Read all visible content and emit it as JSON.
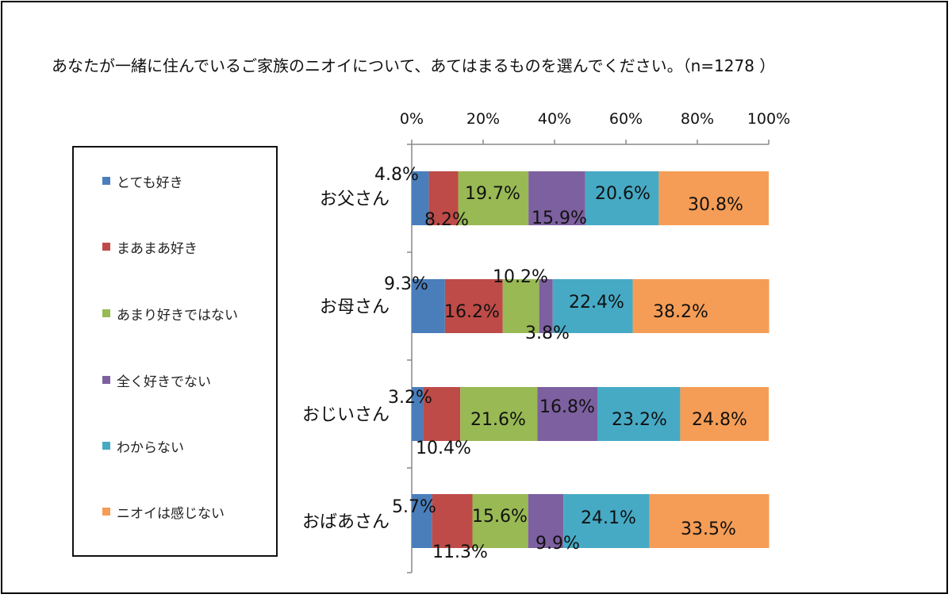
{
  "title": "あなたが一緒に住んでいるご家族のニオイについて、あてはまるものを選んでください。（n=1278 ）",
  "legend": {
    "items": [
      {
        "label": "とても好き",
        "color": "#4A7EBB"
      },
      {
        "label": "まあまあ好き",
        "color": "#BE4B48"
      },
      {
        "label": "あまり好きではない",
        "color": "#98B954"
      },
      {
        "label": "全く好きでない",
        "color": "#7D60A0"
      },
      {
        "label": "わからない",
        "color": "#46AAC5"
      },
      {
        "label": "ニオイは感じない",
        "color": "#F59D56"
      }
    ]
  },
  "chart_data": {
    "type": "bar",
    "orientation": "horizontal",
    "stacked": true,
    "percent": true,
    "xlim": [
      0,
      100
    ],
    "x_ticks": [
      "0%",
      "20%",
      "40%",
      "60%",
      "80%",
      "100%"
    ],
    "categories": [
      "お父さん",
      "お母さん",
      "おじいさん",
      "おばあさん"
    ],
    "series": [
      {
        "name": "とても好き",
        "color": "#4A7EBB",
        "values": [
          4.8,
          9.3,
          3.2,
          5.7
        ],
        "labels": [
          "4.8%",
          "9.3%",
          "3.2%",
          "5.7%"
        ]
      },
      {
        "name": "まあまあ好き",
        "color": "#BE4B48",
        "values": [
          8.2,
          16.2,
          10.4,
          11.3
        ],
        "labels": [
          "8.2%",
          "16.2%",
          "10.4%",
          "11.3%"
        ]
      },
      {
        "name": "あまり好きではない",
        "color": "#98B954",
        "values": [
          19.7,
          10.2,
          21.6,
          15.6
        ],
        "labels": [
          "19.7%",
          "10.2%",
          "21.6%",
          "15.6%"
        ]
      },
      {
        "name": "全く好きでない",
        "color": "#7D60A0",
        "values": [
          15.9,
          3.8,
          16.8,
          9.9
        ],
        "labels": [
          "15.9%",
          "3.8%",
          "16.8%",
          "9.9%"
        ]
      },
      {
        "name": "わからない",
        "color": "#46AAC5",
        "values": [
          20.6,
          22.4,
          23.2,
          24.1
        ],
        "labels": [
          "20.6%",
          "22.4%",
          "23.2%",
          "24.1%"
        ]
      },
      {
        "name": "ニオイは感じない",
        "color": "#F59D56",
        "values": [
          30.8,
          38.2,
          24.8,
          33.5
        ],
        "labels": [
          "30.8%",
          "38.2%",
          "24.8%",
          "33.5%"
        ]
      }
    ]
  }
}
